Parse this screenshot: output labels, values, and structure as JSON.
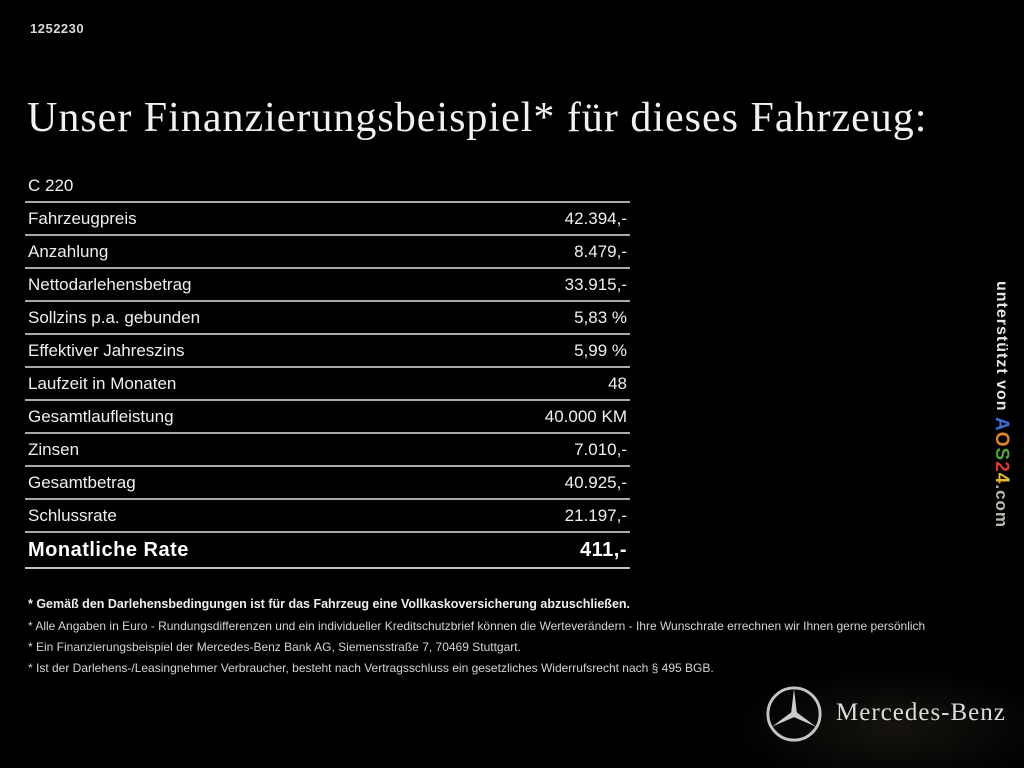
{
  "header": {
    "id_number": "1252230",
    "title": "Unser Finanzierungsbeispiel* für dieses Fahrzeug:"
  },
  "table": {
    "model": "C 220",
    "rows": [
      {
        "label": "Fahrzeugpreis",
        "value": "42.394,-"
      },
      {
        "label": "Anzahlung",
        "value": "8.479,-"
      },
      {
        "label": "Nettodarlehensbetrag",
        "value": "33.915,-"
      },
      {
        "label": "Sollzins p.a. gebunden",
        "value": "5,83 %"
      },
      {
        "label": "Effektiver Jahreszins",
        "value": "5,99 %"
      },
      {
        "label": "Laufzeit in Monaten",
        "value": "48"
      },
      {
        "label": "Gesamtlaufleistung",
        "value": "40.000 KM"
      },
      {
        "label": "Zinsen",
        "value": "7.010,-"
      },
      {
        "label": "Gesamtbetrag",
        "value": "40.925,-"
      },
      {
        "label": "Schlussrate",
        "value": "21.197,-"
      }
    ],
    "total_row": {
      "label": "Monatliche Rate",
      "value": "411,-"
    }
  },
  "footnotes": [
    "* Gemäß den Darlehensbedingungen ist für das Fahrzeug eine Vollkaskoversicherung abzuschließen.",
    "* Alle Angaben in Euro - Rundungsdifferenzen und ein individueller Kreditschutzbrief können die Werteverändern - Ihre Wunschrate errechnen wir Ihnen gerne persönlich",
    "* Ein Finanzierungsbeispiel der Mercedes-Benz Bank AG, Siemensstraße 7, 70469 Stuttgart.",
    "* Ist der Darlehens-/Leasingnehmer Verbraucher, besteht nach Vertragsschluss ein gesetzliches Widerrufsrecht nach § 495 BGB."
  ],
  "watermark": {
    "prefix": "unterstützt von ",
    "brand_letters": [
      {
        "char": "A",
        "color": "#3d6fd6"
      },
      {
        "char": "O",
        "color": "#e2862c"
      },
      {
        "char": "S",
        "color": "#4ea23a"
      },
      {
        "char": "2",
        "color": "#d6372f"
      },
      {
        "char": "4",
        "color": "#e5b92f"
      }
    ],
    "suffix": ".com"
  },
  "footer": {
    "brand": "Mercedes-Benz"
  },
  "colors": {
    "background": "#000000",
    "table_line": "#a9a9a9",
    "text": "#ececec"
  }
}
